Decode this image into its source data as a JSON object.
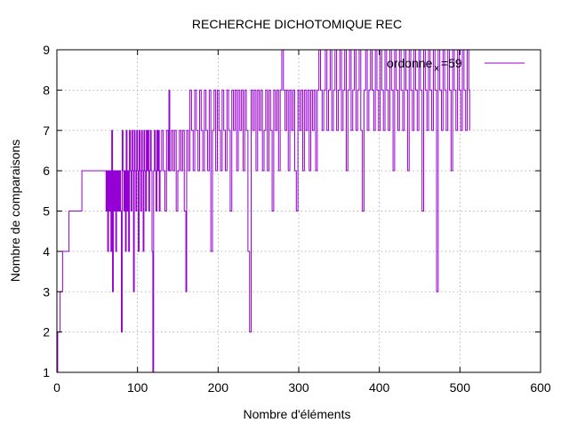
{
  "chart_data": {
    "type": "line",
    "title": "RECHERCHE DICHOTOMIQUE REC",
    "xlabel": "Nombre d'éléments",
    "ylabel": "Nombre de comparaisons",
    "xlim": [
      0,
      600
    ],
    "ylim": [
      1,
      9
    ],
    "x_ticks": [
      0,
      100,
      200,
      300,
      400,
      500,
      600
    ],
    "y_ticks": [
      1,
      2,
      3,
      4,
      5,
      6,
      7,
      8,
      9
    ],
    "grid": true,
    "legend_position": "top-right",
    "legend": {
      "main": "ordonne",
      "sub": "x",
      "suffix": "=59"
    },
    "series": [
      {
        "color": "#9400d3",
        "step": true,
        "points": [
          [
            0,
            1
          ],
          [
            1,
            2
          ],
          [
            3,
            2
          ],
          [
            4,
            3
          ],
          [
            7,
            4
          ],
          [
            15,
            5
          ],
          [
            31,
            6
          ],
          [
            61,
            5
          ],
          [
            62,
            6
          ],
          [
            63,
            4
          ],
          [
            64,
            6
          ],
          [
            65,
            5
          ],
          [
            66,
            6
          ],
          [
            67,
            4
          ],
          [
            68,
            7
          ],
          [
            69,
            3
          ],
          [
            70,
            6
          ],
          [
            71,
            5
          ],
          [
            72,
            6
          ],
          [
            73,
            4
          ],
          [
            74,
            6
          ],
          [
            75,
            5
          ],
          [
            76,
            6
          ],
          [
            77,
            5
          ],
          [
            78,
            6
          ],
          [
            79,
            5
          ],
          [
            80,
            2
          ],
          [
            81,
            7
          ],
          [
            82,
            6
          ],
          [
            83,
            5
          ],
          [
            84,
            6
          ],
          [
            85,
            4
          ],
          [
            86,
            7
          ],
          [
            87,
            5
          ],
          [
            88,
            6
          ],
          [
            89,
            4
          ],
          [
            90,
            7
          ],
          [
            91,
            6
          ],
          [
            92,
            5
          ],
          [
            93,
            7
          ],
          [
            94,
            6
          ],
          [
            95,
            3
          ],
          [
            96,
            7
          ],
          [
            97,
            6
          ],
          [
            98,
            5
          ],
          [
            99,
            7
          ],
          [
            100,
            6
          ],
          [
            101,
            4
          ],
          [
            102,
            7
          ],
          [
            103,
            6
          ],
          [
            104,
            5
          ],
          [
            105,
            7
          ],
          [
            106,
            6
          ],
          [
            107,
            4
          ],
          [
            108,
            7
          ],
          [
            109,
            6
          ],
          [
            110,
            5
          ],
          [
            111,
            7
          ],
          [
            112,
            6
          ],
          [
            113,
            7
          ],
          [
            114,
            5
          ],
          [
            115,
            6
          ],
          [
            116,
            7
          ],
          [
            117,
            6
          ],
          [
            118,
            4
          ],
          [
            119,
            1
          ],
          [
            120,
            6
          ],
          [
            121,
            7
          ],
          [
            122,
            6
          ],
          [
            123,
            5
          ],
          [
            124,
            7
          ],
          [
            125,
            6
          ],
          [
            126,
            7
          ],
          [
            127,
            5
          ],
          [
            128,
            6
          ],
          [
            130,
            7
          ],
          [
            132,
            6
          ],
          [
            134,
            5
          ],
          [
            136,
            7
          ],
          [
            138,
            6
          ],
          [
            139,
            8
          ],
          [
            140,
            6
          ],
          [
            142,
            7
          ],
          [
            144,
            6
          ],
          [
            146,
            7
          ],
          [
            148,
            5
          ],
          [
            150,
            6
          ],
          [
            152,
            7
          ],
          [
            154,
            6
          ],
          [
            156,
            7
          ],
          [
            158,
            5
          ],
          [
            160,
            3
          ],
          [
            161,
            7
          ],
          [
            163,
            6
          ],
          [
            165,
            8
          ],
          [
            167,
            7
          ],
          [
            169,
            6
          ],
          [
            171,
            8
          ],
          [
            173,
            7
          ],
          [
            175,
            6
          ],
          [
            177,
            8
          ],
          [
            179,
            7
          ],
          [
            181,
            6
          ],
          [
            183,
            8
          ],
          [
            185,
            7
          ],
          [
            187,
            6
          ],
          [
            189,
            8
          ],
          [
            191,
            4
          ],
          [
            193,
            7
          ],
          [
            195,
            8
          ],
          [
            197,
            6
          ],
          [
            199,
            8
          ],
          [
            201,
            7
          ],
          [
            203,
            6
          ],
          [
            205,
            8
          ],
          [
            207,
            7
          ],
          [
            209,
            6
          ],
          [
            211,
            8
          ],
          [
            213,
            7
          ],
          [
            215,
            5
          ],
          [
            217,
            8
          ],
          [
            219,
            7
          ],
          [
            221,
            8
          ],
          [
            223,
            6
          ],
          [
            225,
            8
          ],
          [
            227,
            7
          ],
          [
            229,
            8
          ],
          [
            231,
            6
          ],
          [
            233,
            8
          ],
          [
            235,
            7
          ],
          [
            237,
            4
          ],
          [
            239,
            2
          ],
          [
            241,
            8
          ],
          [
            243,
            7
          ],
          [
            245,
            8
          ],
          [
            247,
            6
          ],
          [
            249,
            8
          ],
          [
            251,
            7
          ],
          [
            253,
            8
          ],
          [
            255,
            6
          ],
          [
            257,
            7
          ],
          [
            259,
            8
          ],
          [
            261,
            6
          ],
          [
            263,
            8
          ],
          [
            265,
            7
          ],
          [
            267,
            5
          ],
          [
            269,
            8
          ],
          [
            271,
            7
          ],
          [
            273,
            8
          ],
          [
            275,
            6
          ],
          [
            277,
            8
          ],
          [
            279,
            9
          ],
          [
            281,
            8
          ],
          [
            283,
            7
          ],
          [
            285,
            8
          ],
          [
            287,
            6
          ],
          [
            289,
            8
          ],
          [
            291,
            7
          ],
          [
            293,
            8
          ],
          [
            295,
            6
          ],
          [
            297,
            5
          ],
          [
            299,
            8
          ],
          [
            301,
            7
          ],
          [
            303,
            8
          ],
          [
            305,
            6
          ],
          [
            307,
            8
          ],
          [
            309,
            7
          ],
          [
            311,
            8
          ],
          [
            313,
            6
          ],
          [
            315,
            8
          ],
          [
            317,
            7
          ],
          [
            319,
            8
          ],
          [
            321,
            6
          ],
          [
            323,
            8
          ],
          [
            325,
            9
          ],
          [
            327,
            8
          ],
          [
            329,
            7
          ],
          [
            331,
            8
          ],
          [
            333,
            9
          ],
          [
            335,
            7
          ],
          [
            337,
            8
          ],
          [
            339,
            9
          ],
          [
            341,
            7
          ],
          [
            343,
            8
          ],
          [
            345,
            9
          ],
          [
            347,
            7
          ],
          [
            349,
            8
          ],
          [
            351,
            9
          ],
          [
            353,
            7
          ],
          [
            355,
            8
          ],
          [
            357,
            9
          ],
          [
            359,
            6
          ],
          [
            361,
            8
          ],
          [
            363,
            9
          ],
          [
            365,
            7
          ],
          [
            367,
            8
          ],
          [
            369,
            9
          ],
          [
            371,
            7
          ],
          [
            373,
            8
          ],
          [
            375,
            9
          ],
          [
            377,
            7
          ],
          [
            379,
            5
          ],
          [
            381,
            8
          ],
          [
            383,
            9
          ],
          [
            385,
            7
          ],
          [
            387,
            8
          ],
          [
            389,
            9
          ],
          [
            391,
            8
          ],
          [
            393,
            7
          ],
          [
            395,
            9
          ],
          [
            397,
            8
          ],
          [
            399,
            7
          ],
          [
            401,
            9
          ],
          [
            403,
            8
          ],
          [
            405,
            7
          ],
          [
            407,
            9
          ],
          [
            409,
            8
          ],
          [
            411,
            7
          ],
          [
            413,
            9
          ],
          [
            415,
            8
          ],
          [
            417,
            6
          ],
          [
            419,
            9
          ],
          [
            421,
            8
          ],
          [
            423,
            7
          ],
          [
            425,
            9
          ],
          [
            427,
            8
          ],
          [
            429,
            7
          ],
          [
            431,
            9
          ],
          [
            433,
            8
          ],
          [
            435,
            6
          ],
          [
            437,
            9
          ],
          [
            439,
            8
          ],
          [
            441,
            7
          ],
          [
            443,
            9
          ],
          [
            445,
            8
          ],
          [
            447,
            7
          ],
          [
            449,
            9
          ],
          [
            451,
            8
          ],
          [
            453,
            5
          ],
          [
            455,
            9
          ],
          [
            457,
            8
          ],
          [
            459,
            7
          ],
          [
            461,
            9
          ],
          [
            463,
            8
          ],
          [
            465,
            7
          ],
          [
            467,
            9
          ],
          [
            469,
            8
          ],
          [
            471,
            3
          ],
          [
            473,
            9
          ],
          [
            475,
            8
          ],
          [
            477,
            7
          ],
          [
            479,
            9
          ],
          [
            481,
            8
          ],
          [
            483,
            7
          ],
          [
            485,
            9
          ],
          [
            487,
            8
          ],
          [
            489,
            6
          ],
          [
            491,
            9
          ],
          [
            493,
            8
          ],
          [
            495,
            7
          ],
          [
            497,
            9
          ],
          [
            499,
            8
          ],
          [
            501,
            7
          ],
          [
            503,
            9
          ],
          [
            505,
            8
          ],
          [
            507,
            7
          ],
          [
            509,
            9
          ],
          [
            511,
            8
          ],
          [
            512,
            7
          ]
        ]
      }
    ]
  }
}
